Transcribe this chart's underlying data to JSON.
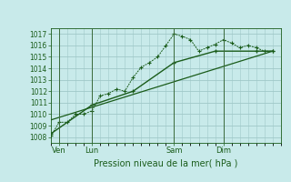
{
  "title": "Pression niveau de la mer( hPa )",
  "bg_color": "#c8eaea",
  "grid_color": "#a0c8c8",
  "line_color": "#1a5c1a",
  "vline_color": "#3a6a3a",
  "ylim": [
    1007.5,
    1017.5
  ],
  "yticks": [
    1008,
    1009,
    1010,
    1011,
    1012,
    1013,
    1014,
    1015,
    1016,
    1017
  ],
  "xlim": [
    0,
    28
  ],
  "day_labels": [
    "Ven",
    "Lun",
    "Sam",
    "Dim"
  ],
  "day_positions": [
    1,
    5,
    15,
    21
  ],
  "vline_positions": [
    1,
    5,
    15,
    21
  ],
  "series1_x": [
    0,
    1,
    2,
    3,
    4,
    5,
    6,
    7,
    8,
    9,
    10,
    11,
    12,
    13,
    14,
    15,
    16,
    17,
    18,
    19,
    20,
    21,
    22,
    23,
    24,
    25,
    26,
    27
  ],
  "series1_y": [
    1008.1,
    1009.3,
    1009.3,
    1010.0,
    1010.0,
    1010.3,
    1011.6,
    1011.8,
    1012.2,
    1012.0,
    1013.2,
    1014.1,
    1014.5,
    1015.0,
    1016.0,
    1017.0,
    1016.8,
    1016.5,
    1015.5,
    1015.8,
    1016.1,
    1016.5,
    1016.2,
    1015.8,
    1016.0,
    1015.8,
    1015.5,
    1015.5
  ],
  "series2_x": [
    0,
    5,
    10,
    15,
    20,
    25,
    27
  ],
  "series2_y": [
    1008.3,
    1010.8,
    1012.0,
    1014.5,
    1015.5,
    1015.5,
    1015.5
  ],
  "series3_x": [
    0,
    27
  ],
  "series3_y": [
    1009.5,
    1015.5
  ]
}
